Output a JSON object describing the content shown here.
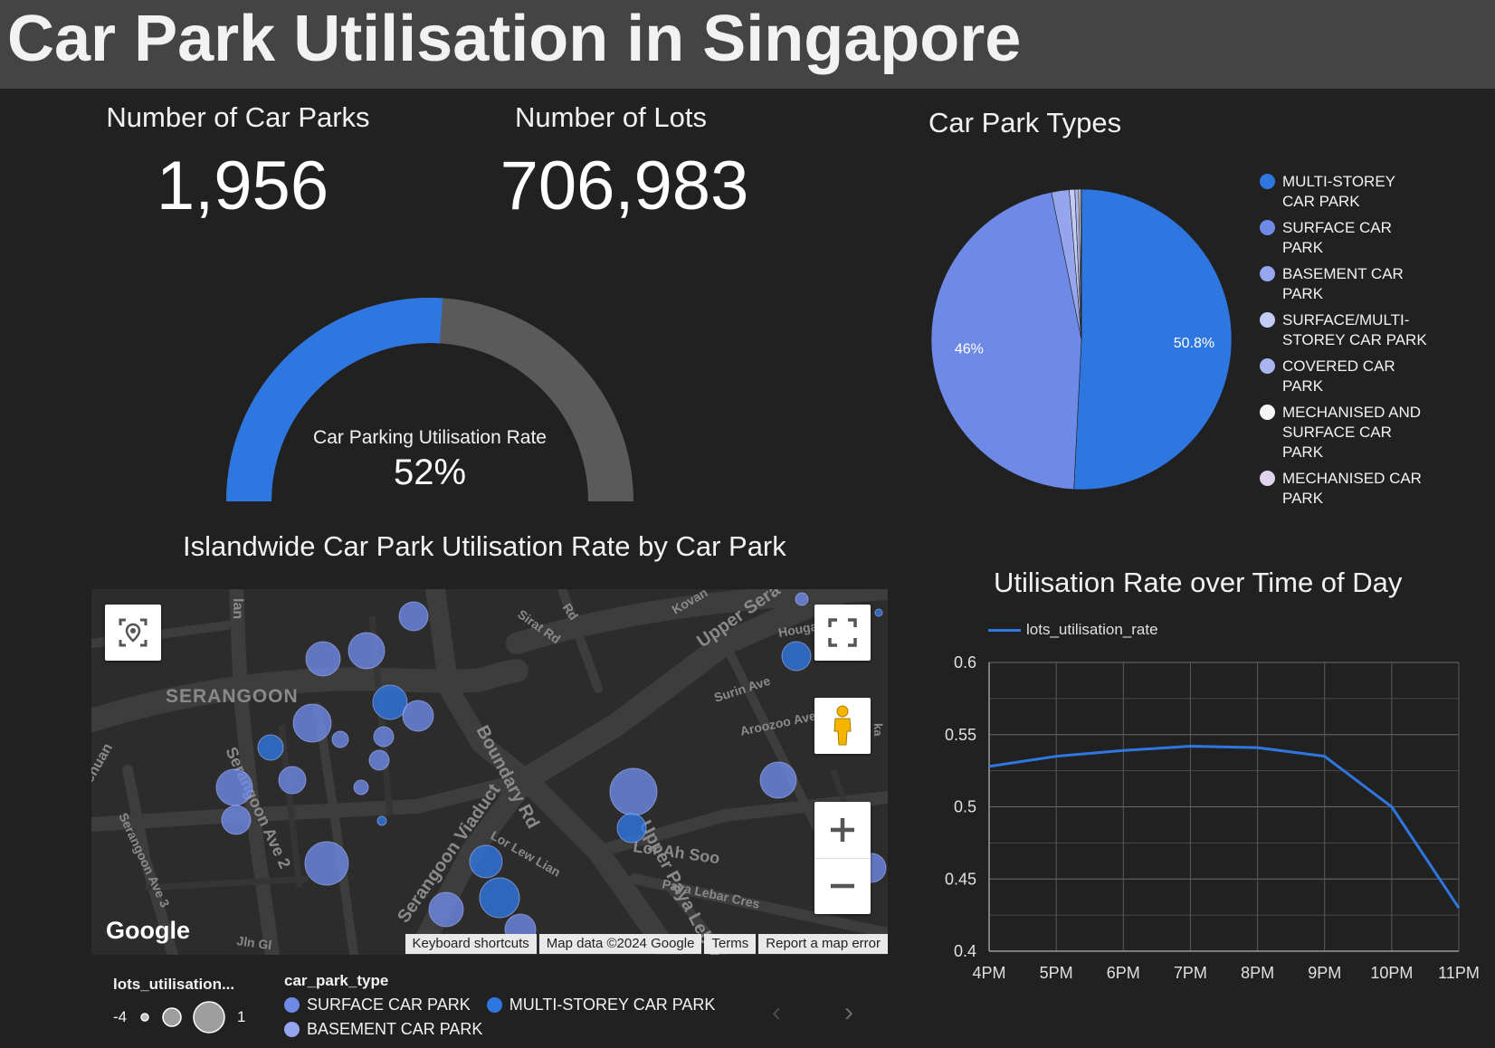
{
  "header": {
    "title": "Car Park Utilisation in Singapore"
  },
  "kpis": {
    "car_parks": {
      "label": "Number of Car Parks",
      "value": "1,956"
    },
    "lots": {
      "label": "Number of Lots",
      "value": "706,983"
    }
  },
  "gauge": {
    "label": "Car Parking Utilisation Rate",
    "value_text": "52%",
    "value": 0.52,
    "fill_color": "#2f77e0",
    "track_color": "#5a5a5a"
  },
  "pie": {
    "title": "Car Park Types",
    "slices": [
      {
        "name": "MULTI-STOREY CAR PARK",
        "legend_lines": [
          "MULTI-STOREY",
          "CAR PARK"
        ],
        "value": 50.8,
        "label": "50.8%",
        "color": "#2f77e0"
      },
      {
        "name": "SURFACE CAR PARK",
        "legend_lines": [
          "SURFACE CAR",
          "PARK"
        ],
        "value": 46,
        "label": "46%",
        "color": "#6f8ae6"
      },
      {
        "name": "BASEMENT CAR PARK",
        "legend_lines": [
          "BASEMENT CAR",
          "PARK"
        ],
        "value": 1.9,
        "color": "#96a6ee"
      },
      {
        "name": "SURFACE/MULTI-STOREY CAR PARK",
        "legend_lines": [
          "SURFACE/MULTI-",
          "STOREY CAR PARK"
        ],
        "value": 0.6,
        "color": "#c3ccf5"
      },
      {
        "name": "COVERED CAR PARK",
        "legend_lines": [
          "COVERED CAR",
          "PARK"
        ],
        "value": 0.4,
        "color": "#aab5f0"
      },
      {
        "name": "MECHANISED AND SURFACE CAR PARK",
        "legend_lines": [
          "MECHANISED AND",
          "SURFACE CAR",
          "PARK"
        ],
        "value": 0.2,
        "color": "#f5f5f5"
      },
      {
        "name": "MECHANISED CAR PARK",
        "legend_lines": [
          "MECHANISED CAR",
          "PARK"
        ],
        "value": 0.1,
        "color": "#dfd3ee"
      }
    ]
  },
  "map": {
    "title": "Islandwide Car Park Utilisation Rate by Car Park",
    "google_label": "Google",
    "footer": [
      "Keyboard shortcuts",
      "Map data ©2024 Google",
      "Terms",
      "Report a map error"
    ],
    "area_label": "SERANGOON",
    "road_labels": [
      "Boundary Rd",
      "Upper Paya Lebar Rd",
      "Serangoon Viaduct",
      "Serangoon Ave 2",
      "Serangoon Ave 3",
      "Lor Ah Soo",
      "Lor Lew Lian",
      "Paya Lebar Cres",
      "Upper Sera",
      "Sirat Rd",
      "Kovan",
      "Surin Ave",
      "Aroozoo Ave",
      "Houga",
      "Jln Gl",
      "chuan",
      "lan",
      "Rd",
      "ka"
    ],
    "size_legend": {
      "title": "lots_utilisation...",
      "min": "-4",
      "max": "1"
    },
    "type_legend": {
      "title": "car_park_type",
      "items": [
        "SURFACE CAR PARK",
        "MULTI-STOREY CAR PARK",
        "BASEMENT CAR PARK"
      ]
    }
  },
  "chart_data": {
    "type": "line",
    "title": "Utilisation Rate over Time of Day",
    "x": [
      "4PM",
      "5PM",
      "6PM",
      "7PM",
      "8PM",
      "9PM",
      "10PM",
      "11PM"
    ],
    "series": [
      {
        "name": "lots_utilisation_rate",
        "values": [
          0.528,
          0.535,
          0.539,
          0.542,
          0.541,
          0.535,
          0.5,
          0.43
        ],
        "color": "#2f77e0"
      }
    ],
    "y_ticks": [
      "0.6",
      "0.55",
      "0.5",
      "0.45",
      "0.4"
    ],
    "ylim": [
      0.4,
      0.6
    ],
    "grid": true,
    "legend": "top-left"
  }
}
